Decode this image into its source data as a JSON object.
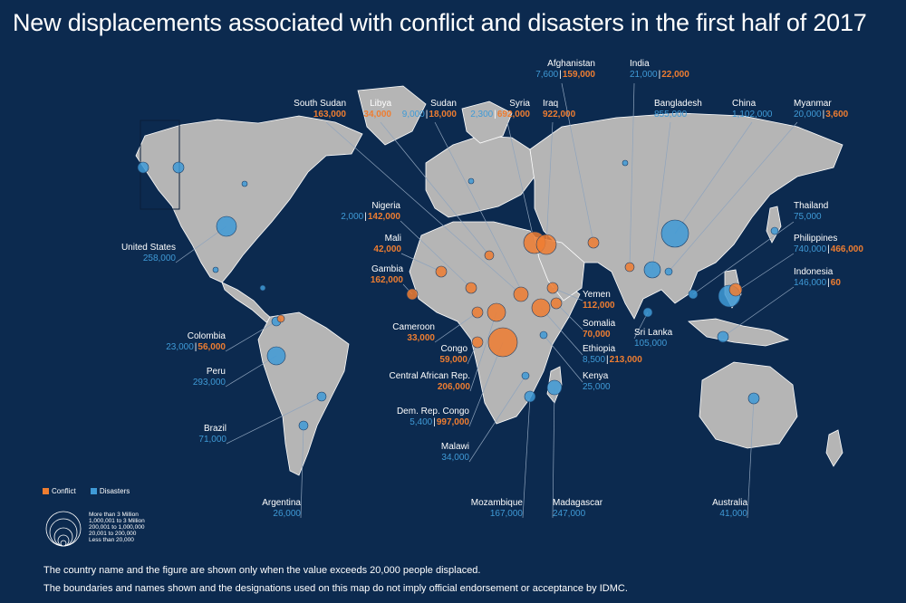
{
  "title": "New displacements associated with conflict and disasters in the first half of 2017",
  "colors": {
    "background": "#0c2a4f",
    "land": "#b5b5b5",
    "border": "#ffffff",
    "conflict": "#ee7d31",
    "disasters": "#3f9ad6"
  },
  "legend": {
    "conflict": "Conflict",
    "disasters": "Disasters",
    "sizes": [
      "More than 3 Million",
      "1,000,001 to 3 Million",
      "200,001 to 1,000,000",
      "20,001 to 200,000",
      "Less than 20,000"
    ]
  },
  "countries": {
    "afghanistan": {
      "name": "Afghanistan",
      "disasters": "7,600",
      "conflict": "159,000"
    },
    "india": {
      "name": "India",
      "disasters": "21,000",
      "conflict": "22,000"
    },
    "south_sudan": {
      "name": "South Sudan",
      "conflict": "163,000"
    },
    "libya": {
      "name": "Libya",
      "conflict": "34,000"
    },
    "sudan": {
      "name": "Sudan",
      "disasters": "9,000",
      "conflict": "18,000"
    },
    "syria": {
      "name": "Syria",
      "disasters": "2,300",
      "conflict": "692,000"
    },
    "iraq": {
      "name": "Iraq",
      "conflict": "922,000"
    },
    "bangladesh": {
      "name": "Bangladesh",
      "disasters": "855,000"
    },
    "china": {
      "name": "China",
      "disasters": "1,102,000"
    },
    "myanmar": {
      "name": "Myanmar",
      "disasters": "20,000",
      "conflict": "3,600"
    },
    "nigeria": {
      "name": "Nigeria",
      "disasters": "2,000",
      "conflict": "142,000"
    },
    "thailand": {
      "name": "Thailand",
      "disasters": "75,000"
    },
    "mali": {
      "name": "Mali",
      "conflict": "42,000"
    },
    "united_states": {
      "name": "United States",
      "disasters": "258,000"
    },
    "philippines": {
      "name": "Philippines",
      "disasters": "740,000",
      "conflict": "466,000"
    },
    "gambia": {
      "name": "Gambia",
      "conflict": "162,000"
    },
    "indonesia": {
      "name": "Indonesia",
      "disasters": "146,000",
      "conflict": "60"
    },
    "yemen": {
      "name": "Yemen",
      "conflict": "112,000"
    },
    "cameroon": {
      "name": "Cameroon",
      "conflict": "33,000"
    },
    "colombia": {
      "name": "Colombia",
      "disasters": "23,000",
      "conflict": "56,000"
    },
    "somalia": {
      "name": "Somalia",
      "conflict": "70,000"
    },
    "sri_lanka": {
      "name": "Sri Lanka",
      "disasters": "105,000"
    },
    "congo": {
      "name": "Congo",
      "conflict": "59,000"
    },
    "ethiopia": {
      "name": "Ethiopia",
      "disasters": "8,500",
      "conflict": "213,000"
    },
    "peru": {
      "name": "Peru",
      "disasters": "293,000"
    },
    "car": {
      "name": "Central African Rep.",
      "conflict": "206,000"
    },
    "kenya": {
      "name": "Kenya",
      "disasters": "25,000"
    },
    "drc": {
      "name": "Dem. Rep. Congo",
      "disasters": "5,400",
      "conflict": "997,000"
    },
    "brazil": {
      "name": "Brazil",
      "disasters": "71,000"
    },
    "malawi": {
      "name": "Malawi",
      "disasters": "34,000"
    },
    "argentina": {
      "name": "Argentina",
      "disasters": "26,000"
    },
    "mozambique": {
      "name": "Mozambique",
      "disasters": "167,000"
    },
    "madagascar": {
      "name": "Madagascar",
      "disasters": "247,000"
    },
    "australia": {
      "name": "Australia",
      "disasters": "41,000"
    }
  },
  "footnotes": [
    "The country name and the figure are shown only when the value exceeds 20,000 people displaced.",
    "The boundaries and names shown and the designations used on this map do not imply official endorsement or acceptance by IDMC."
  ]
}
